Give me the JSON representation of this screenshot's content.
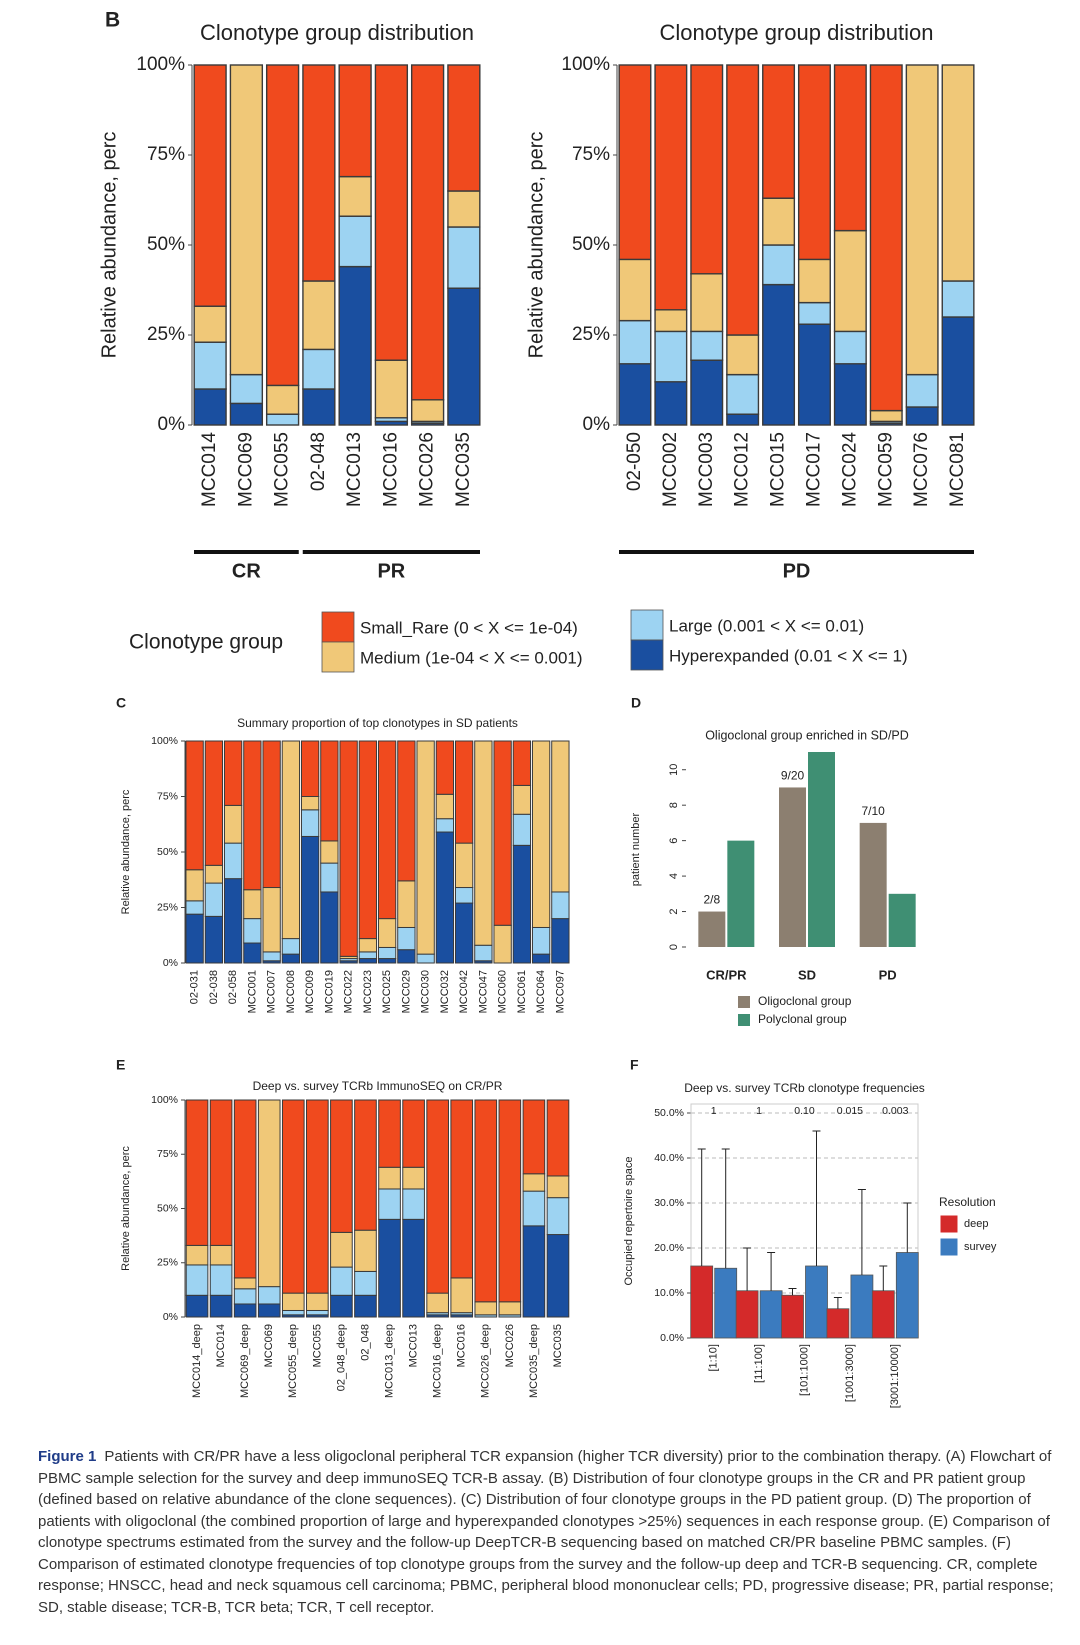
{
  "chart_data": [
    {
      "type": "stacked_bar",
      "panel": "B",
      "title": "Clonotype group distribution",
      "y_label": "Relative abundance, perc",
      "categories": [
        "MCC014",
        "MCC069",
        "MCC055",
        "02-048",
        "MCC013",
        "MCC016",
        "MCC026",
        "MCC035"
      ],
      "group_labels": [
        "CR",
        "CR",
        "CR",
        "PR",
        "PR",
        "PR",
        "PR",
        "PR"
      ],
      "legend_title": "Clonotype group",
      "series": [
        {
          "name": "Small_Rare (0 < X <= 1e-04)",
          "color": "#f04a1e",
          "values": [
            67,
            0,
            89,
            60,
            31,
            82,
            93,
            35
          ]
        },
        {
          "name": "Medium (1e-04 < X <= 0.001)",
          "color": "#f0c878",
          "values": [
            10,
            86,
            8,
            19,
            11,
            16,
            6,
            10
          ]
        },
        {
          "name": "Large (0.001 < X <= 0.01)",
          "color": "#9dd3f2",
          "values": [
            13,
            8,
            3,
            11,
            14,
            1,
            0.5,
            17
          ]
        },
        {
          "name": "Hyperexpanded (0.01 < X <= 1)",
          "color": "#1a4fa0",
          "values": [
            10,
            6,
            0,
            10,
            44,
            1,
            0.5,
            38
          ]
        }
      ],
      "ylim": [
        0,
        100
      ],
      "yticks": [
        {
          "value": 0,
          "label": "0%"
        },
        {
          "value": 25,
          "label": "25%"
        },
        {
          "value": 50,
          "label": "50%"
        },
        {
          "value": 75,
          "label": "75%"
        },
        {
          "value": 100,
          "label": "100%"
        }
      ]
    },
    {
      "type": "stacked_bar",
      "title": "Clonotype group distribution",
      "y_label": "Relative abundance, perc",
      "categories": [
        "02-050",
        "MCC002",
        "MCC003",
        "MCC012",
        "MCC015",
        "MCC017",
        "MCC024",
        "MCC059",
        "MCC076",
        "MCC081"
      ],
      "group_labels": [
        "PD",
        "PD",
        "PD",
        "PD",
        "PD",
        "PD",
        "PD",
        "PD",
        "PD",
        "PD"
      ],
      "series": [
        {
          "color": "#f04a1e",
          "values": [
            54,
            68,
            58,
            75,
            37,
            54,
            46,
            96,
            0,
            0
          ]
        },
        {
          "color": "#f0c878",
          "values": [
            17,
            6,
            16,
            11,
            13,
            12,
            28,
            3,
            86,
            60
          ]
        },
        {
          "color": "#9dd3f2",
          "values": [
            12,
            14,
            8,
            11,
            11,
            6,
            9,
            0.5,
            9,
            10
          ]
        },
        {
          "color": "#1a4fa0",
          "values": [
            17,
            12,
            18,
            3,
            39,
            28,
            17,
            0.5,
            5,
            30
          ]
        }
      ],
      "ylim": [
        0,
        100
      ],
      "yticks": [
        {
          "value": 0,
          "label": "0%"
        },
        {
          "value": 25,
          "label": "25%"
        },
        {
          "value": 50,
          "label": "50%"
        },
        {
          "value": 75,
          "label": "75%"
        },
        {
          "value": 100,
          "label": "100%"
        }
      ]
    },
    {
      "type": "stacked_bar",
      "panel": "C",
      "title": "Summary proportion of top clonotypes in SD patients",
      "y_label": "Relative abundance, perc",
      "categories": [
        "02-031",
        "02-038",
        "02-058",
        "MCC001",
        "MCC007",
        "MCC008",
        "MCC009",
        "MCC019",
        "MCC022",
        "MCC023",
        "MCC025",
        "MCC029",
        "MCC030",
        "MCC032",
        "MCC042",
        "MCC047",
        "MCC060",
        "MCC061",
        "MCC064",
        "MCC097"
      ],
      "series": [
        {
          "color": "#f04a1e",
          "values": [
            58,
            56,
            29,
            67,
            66,
            0,
            25,
            45,
            97,
            89,
            80,
            63,
            0,
            24,
            46,
            0,
            83,
            20,
            0,
            0
          ]
        },
        {
          "color": "#f0c878",
          "values": [
            14,
            8,
            17,
            13,
            29,
            89,
            6,
            10,
            1,
            6,
            13,
            21,
            96,
            11,
            20,
            92,
            17,
            13,
            84,
            68
          ]
        },
        {
          "color": "#9dd3f2",
          "values": [
            6,
            15,
            16,
            11,
            4,
            7,
            12,
            13,
            1,
            3,
            5,
            10,
            4,
            6,
            7,
            7,
            0,
            14,
            12,
            12
          ]
        },
        {
          "color": "#1a4fa0",
          "values": [
            22,
            21,
            38,
            9,
            1,
            4,
            57,
            32,
            1,
            2,
            2,
            6,
            0,
            59,
            27,
            1,
            0,
            53,
            4,
            20
          ]
        }
      ],
      "ylim": [
        0,
        100
      ],
      "yticks": [
        {
          "value": 0,
          "label": "0%"
        },
        {
          "value": 25,
          "label": "25%"
        },
        {
          "value": 50,
          "label": "50%"
        },
        {
          "value": 75,
          "label": "75%"
        },
        {
          "value": 100,
          "label": "100%"
        }
      ]
    },
    {
      "type": "bar",
      "panel": "D",
      "title": "Oligoclonal group enriched in SD/PD",
      "y_label": "patient number",
      "categories": [
        "CR/PR",
        "SD",
        "PD"
      ],
      "series": [
        {
          "name": "Oligoclonal group",
          "color": "#8c7f70",
          "values": [
            2,
            9,
            7
          ]
        },
        {
          "name": "Polyclonal group",
          "color": "#3f8f73",
          "values": [
            6,
            11,
            3
          ]
        }
      ],
      "annotations": [
        "2/8",
        "9/20",
        "7/10"
      ],
      "ylim": [
        0,
        11
      ],
      "yticks": [
        0,
        2,
        4,
        6,
        8,
        10
      ]
    },
    {
      "type": "stacked_bar",
      "panel": "E",
      "title": "Deep vs. survey TCRb ImmunoSEQ on CR/PR",
      "y_label": "Relative abundance, perc",
      "categories": [
        "MCC014_deep",
        "MCC014",
        "MCC069_deep",
        "MCC069",
        "MCC055_deep",
        "MCC055",
        "02_048_deep",
        "02_048",
        "MCC013_deep",
        "MCC013",
        "MCC016_deep",
        "MCC016",
        "MCC026_deep",
        "MCC026",
        "MCC035_deep",
        "MCC035"
      ],
      "series": [
        {
          "color": "#f04a1e",
          "values": [
            67,
            67,
            82,
            0,
            89,
            89,
            61,
            60,
            31,
            31,
            89,
            82,
            93,
            93,
            34,
            35
          ]
        },
        {
          "color": "#f0c878",
          "values": [
            9,
            9,
            5,
            86,
            8,
            8,
            16,
            19,
            10,
            10,
            9,
            16,
            6,
            6,
            8,
            10
          ]
        },
        {
          "color": "#9dd3f2",
          "values": [
            14,
            14,
            7,
            8,
            2,
            2,
            13,
            11,
            14,
            14,
            1,
            1,
            1,
            1,
            16,
            17
          ]
        },
        {
          "color": "#1a4fa0",
          "values": [
            10,
            10,
            6,
            6,
            1,
            1,
            10,
            10,
            45,
            45,
            1,
            1,
            0,
            0,
            42,
            38
          ]
        }
      ],
      "ylim": [
        0,
        100
      ],
      "yticks": [
        {
          "value": 0,
          "label": "0%"
        },
        {
          "value": 25,
          "label": "25%"
        },
        {
          "value": 50,
          "label": "50%"
        },
        {
          "value": 75,
          "label": "75%"
        },
        {
          "value": 100,
          "label": "100%"
        }
      ]
    },
    {
      "type": "bar",
      "panel": "F",
      "title": "Deep vs. survey TCRb clonotype frequencies",
      "y_label": "Occupied repertoire space",
      "categories": [
        "[1:10]",
        "[11:100]",
        "[101:1000]",
        "[1001:3000]",
        "[3001:10000]"
      ],
      "pvalues": [
        "1",
        "1",
        "0.10",
        "0.015",
        "0.003"
      ],
      "legend_title": "Resolution",
      "series": [
        {
          "name": "deep",
          "color": "#d42a2a",
          "values": [
            16,
            10.5,
            9.5,
            6.5,
            10.5
          ],
          "errors": [
            26,
            9.5,
            1.5,
            2.5,
            5.5
          ]
        },
        {
          "name": "survey",
          "color": "#3b7bbf",
          "values": [
            15.5,
            10.5,
            16,
            14,
            19
          ],
          "errors": [
            26.5,
            8.5,
            30,
            19,
            11
          ]
        }
      ],
      "ylim": [
        0,
        52
      ],
      "yticks": [
        {
          "value": 0,
          "label": "0.0%"
        },
        {
          "value": 10,
          "label": "10.0%"
        },
        {
          "value": 20,
          "label": "20.0%"
        },
        {
          "value": 30,
          "label": "30.0%"
        },
        {
          "value": 40,
          "label": "40.0%"
        },
        {
          "value": 50,
          "label": "50.0%"
        }
      ],
      "grid": true
    }
  ],
  "caption": {
    "label": "Figure 1",
    "text": "Patients with CR/PR have a less oligoclonal peripheral TCR expansion (higher TCR diversity) prior to the combination therapy. (A) Flowchart of PBMC sample selection for the survey and deep immunoSEQ TCR-B assay. (B) Distribution of four clonotype groups in the CR and PR patient group (defined based on relative abundance of the clone sequences). (C) Distribution of four clonotype groups in the PD patient group. (D) The proportion of patients with oligoclonal (the combined proportion of large and hyperexpanded clonotypes >25%) sequences in each response group. (E) Comparison of clonotype spectrums estimated from the survey and the follow-up DeepTCR-B sequencing based on matched CR/PR baseline PBMC samples. (F) Comparison of estimated clonotype frequencies of top clonotype groups from the survey and the follow-up deep and TCR-B sequencing. CR, complete response; HNSCC, head and neck squamous cell carcinoma; PBMC, peripheral blood mononuclear cells; PD, progressive disease; PR, partial response; SD, stable disease; TCR-B, TCR beta; TCR, T cell receptor."
  }
}
